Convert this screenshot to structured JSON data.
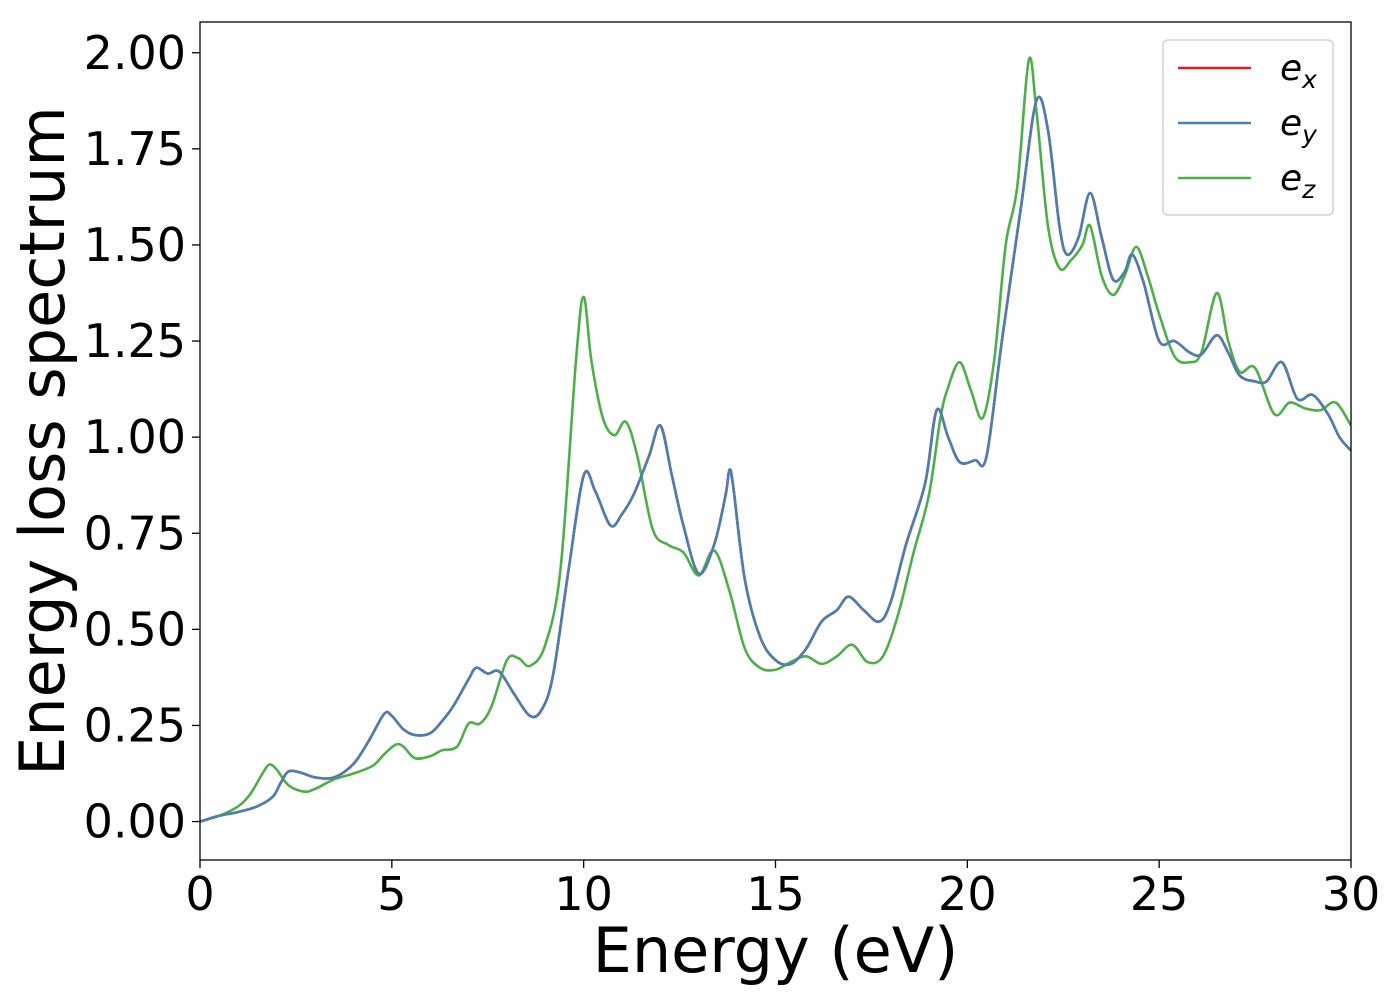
{
  "chart_data": {
    "type": "line",
    "title": "",
    "xlabel": "Energy (eV)",
    "ylabel": "Energy loss spectrum",
    "xlim": [
      0,
      30
    ],
    "ylim": [
      -0.1,
      2.08
    ],
    "x_ticks": [
      0,
      5,
      10,
      15,
      20,
      25,
      30
    ],
    "x_tick_labels": [
      "0",
      "5",
      "10",
      "15",
      "20",
      "25",
      "30"
    ],
    "y_ticks": [
      0,
      0.25,
      0.5,
      0.75,
      1.0,
      1.25,
      1.5,
      1.75,
      2.0
    ],
    "y_tick_labels": [
      "0.00",
      "0.25",
      "0.50",
      "0.75",
      "1.00",
      "1.25",
      "1.50",
      "1.75",
      "2.00"
    ],
    "grid": false,
    "legend_position": "top-right",
    "series": [
      {
        "name": "e",
        "subscript": "x",
        "color": "#e41a1c",
        "points": [
          [
            0,
            0.0
          ],
          [
            0.5,
            0.015
          ],
          [
            1.0,
            0.025
          ],
          [
            1.5,
            0.04
          ],
          [
            1.9,
            0.065
          ],
          [
            2.1,
            0.1
          ],
          [
            2.3,
            0.13
          ],
          [
            2.6,
            0.128
          ],
          [
            3.0,
            0.115
          ],
          [
            3.5,
            0.115
          ],
          [
            4.0,
            0.15
          ],
          [
            4.4,
            0.21
          ],
          [
            4.8,
            0.28
          ],
          [
            5.0,
            0.275
          ],
          [
            5.3,
            0.24
          ],
          [
            5.6,
            0.225
          ],
          [
            6.0,
            0.23
          ],
          [
            6.3,
            0.26
          ],
          [
            6.6,
            0.3
          ],
          [
            7.0,
            0.37
          ],
          [
            7.2,
            0.4
          ],
          [
            7.5,
            0.385
          ],
          [
            7.8,
            0.39
          ],
          [
            8.2,
            0.33
          ],
          [
            8.6,
            0.275
          ],
          [
            8.9,
            0.29
          ],
          [
            9.2,
            0.38
          ],
          [
            9.6,
            0.65
          ],
          [
            10.0,
            0.9
          ],
          [
            10.3,
            0.86
          ],
          [
            10.7,
            0.77
          ],
          [
            11.0,
            0.8
          ],
          [
            11.3,
            0.85
          ],
          [
            11.7,
            0.95
          ],
          [
            12.0,
            1.03
          ],
          [
            12.3,
            0.9
          ],
          [
            12.6,
            0.77
          ],
          [
            13.0,
            0.645
          ],
          [
            13.4,
            0.72
          ],
          [
            13.7,
            0.85
          ],
          [
            13.8,
            0.915
          ],
          [
            13.9,
            0.87
          ],
          [
            14.2,
            0.63
          ],
          [
            14.6,
            0.48
          ],
          [
            15.0,
            0.42
          ],
          [
            15.4,
            0.41
          ],
          [
            15.8,
            0.45
          ],
          [
            16.2,
            0.52
          ],
          [
            16.6,
            0.55
          ],
          [
            16.9,
            0.585
          ],
          [
            17.3,
            0.55
          ],
          [
            17.7,
            0.52
          ],
          [
            18.0,
            0.57
          ],
          [
            18.4,
            0.72
          ],
          [
            18.9,
            0.88
          ],
          [
            19.2,
            1.07
          ],
          [
            19.5,
            1.0
          ],
          [
            19.8,
            0.935
          ],
          [
            20.2,
            0.94
          ],
          [
            20.5,
            0.95
          ],
          [
            20.9,
            1.25
          ],
          [
            21.4,
            1.6
          ],
          [
            21.8,
            1.875
          ],
          [
            22.1,
            1.8
          ],
          [
            22.4,
            1.55
          ],
          [
            22.6,
            1.475
          ],
          [
            22.9,
            1.52
          ],
          [
            23.2,
            1.635
          ],
          [
            23.5,
            1.52
          ],
          [
            23.8,
            1.41
          ],
          [
            24.1,
            1.43
          ],
          [
            24.3,
            1.475
          ],
          [
            24.6,
            1.4
          ],
          [
            25.0,
            1.25
          ],
          [
            25.4,
            1.25
          ],
          [
            25.8,
            1.22
          ],
          [
            26.1,
            1.215
          ],
          [
            26.5,
            1.265
          ],
          [
            26.8,
            1.22
          ],
          [
            27.1,
            1.16
          ],
          [
            27.5,
            1.145
          ],
          [
            27.8,
            1.145
          ],
          [
            28.2,
            1.195
          ],
          [
            28.6,
            1.1
          ],
          [
            29.0,
            1.11
          ],
          [
            29.4,
            1.06
          ],
          [
            29.7,
            1.0
          ],
          [
            30.0,
            0.965
          ]
        ]
      },
      {
        "name": "e",
        "subscript": "y",
        "color": "#4a7fb0",
        "points": [
          [
            0,
            0.0
          ],
          [
            0.5,
            0.015
          ],
          [
            1.0,
            0.025
          ],
          [
            1.5,
            0.04
          ],
          [
            1.9,
            0.065
          ],
          [
            2.1,
            0.1
          ],
          [
            2.3,
            0.13
          ],
          [
            2.6,
            0.128
          ],
          [
            3.0,
            0.115
          ],
          [
            3.5,
            0.115
          ],
          [
            4.0,
            0.15
          ],
          [
            4.4,
            0.21
          ],
          [
            4.8,
            0.28
          ],
          [
            5.0,
            0.275
          ],
          [
            5.3,
            0.24
          ],
          [
            5.6,
            0.225
          ],
          [
            6.0,
            0.23
          ],
          [
            6.3,
            0.26
          ],
          [
            6.6,
            0.3
          ],
          [
            7.0,
            0.37
          ],
          [
            7.2,
            0.4
          ],
          [
            7.5,
            0.385
          ],
          [
            7.8,
            0.39
          ],
          [
            8.2,
            0.33
          ],
          [
            8.6,
            0.275
          ],
          [
            8.9,
            0.29
          ],
          [
            9.2,
            0.38
          ],
          [
            9.6,
            0.65
          ],
          [
            10.0,
            0.9
          ],
          [
            10.3,
            0.86
          ],
          [
            10.7,
            0.77
          ],
          [
            11.0,
            0.8
          ],
          [
            11.3,
            0.85
          ],
          [
            11.7,
            0.95
          ],
          [
            12.0,
            1.03
          ],
          [
            12.3,
            0.9
          ],
          [
            12.6,
            0.77
          ],
          [
            13.0,
            0.645
          ],
          [
            13.4,
            0.72
          ],
          [
            13.7,
            0.85
          ],
          [
            13.8,
            0.915
          ],
          [
            13.9,
            0.87
          ],
          [
            14.2,
            0.63
          ],
          [
            14.6,
            0.48
          ],
          [
            15.0,
            0.42
          ],
          [
            15.4,
            0.41
          ],
          [
            15.8,
            0.45
          ],
          [
            16.2,
            0.52
          ],
          [
            16.6,
            0.55
          ],
          [
            16.9,
            0.585
          ],
          [
            17.3,
            0.55
          ],
          [
            17.7,
            0.52
          ],
          [
            18.0,
            0.57
          ],
          [
            18.4,
            0.72
          ],
          [
            18.9,
            0.88
          ],
          [
            19.2,
            1.07
          ],
          [
            19.5,
            1.0
          ],
          [
            19.8,
            0.935
          ],
          [
            20.2,
            0.94
          ],
          [
            20.5,
            0.95
          ],
          [
            20.9,
            1.25
          ],
          [
            21.4,
            1.6
          ],
          [
            21.8,
            1.875
          ],
          [
            22.1,
            1.8
          ],
          [
            22.4,
            1.55
          ],
          [
            22.6,
            1.475
          ],
          [
            22.9,
            1.52
          ],
          [
            23.2,
            1.635
          ],
          [
            23.5,
            1.52
          ],
          [
            23.8,
            1.41
          ],
          [
            24.1,
            1.43
          ],
          [
            24.3,
            1.475
          ],
          [
            24.6,
            1.4
          ],
          [
            25.0,
            1.25
          ],
          [
            25.4,
            1.25
          ],
          [
            25.8,
            1.22
          ],
          [
            26.1,
            1.215
          ],
          [
            26.5,
            1.265
          ],
          [
            26.8,
            1.22
          ],
          [
            27.1,
            1.16
          ],
          [
            27.5,
            1.145
          ],
          [
            27.8,
            1.145
          ],
          [
            28.2,
            1.195
          ],
          [
            28.6,
            1.1
          ],
          [
            29.0,
            1.11
          ],
          [
            29.4,
            1.06
          ],
          [
            29.7,
            1.0
          ],
          [
            30.0,
            0.965
          ]
        ]
      },
      {
        "name": "e",
        "subscript": "z",
        "color": "#4daf4a",
        "points": [
          [
            0,
            0.0
          ],
          [
            0.5,
            0.015
          ],
          [
            1.0,
            0.04
          ],
          [
            1.3,
            0.07
          ],
          [
            1.6,
            0.12
          ],
          [
            1.8,
            0.148
          ],
          [
            2.0,
            0.135
          ],
          [
            2.3,
            0.095
          ],
          [
            2.7,
            0.078
          ],
          [
            3.0,
            0.085
          ],
          [
            3.5,
            0.11
          ],
          [
            4.0,
            0.125
          ],
          [
            4.5,
            0.145
          ],
          [
            4.8,
            0.175
          ],
          [
            5.1,
            0.2
          ],
          [
            5.3,
            0.195
          ],
          [
            5.6,
            0.165
          ],
          [
            6.0,
            0.17
          ],
          [
            6.3,
            0.185
          ],
          [
            6.7,
            0.195
          ],
          [
            7.0,
            0.255
          ],
          [
            7.3,
            0.255
          ],
          [
            7.6,
            0.3
          ],
          [
            8.0,
            0.42
          ],
          [
            8.3,
            0.425
          ],
          [
            8.6,
            0.405
          ],
          [
            9.0,
            0.46
          ],
          [
            9.4,
            0.66
          ],
          [
            9.8,
            1.2
          ],
          [
            10.0,
            1.365
          ],
          [
            10.2,
            1.2
          ],
          [
            10.5,
            1.05
          ],
          [
            10.8,
            1.005
          ],
          [
            11.1,
            1.04
          ],
          [
            11.4,
            0.95
          ],
          [
            11.8,
            0.76
          ],
          [
            12.2,
            0.72
          ],
          [
            12.6,
            0.7
          ],
          [
            13.0,
            0.64
          ],
          [
            13.4,
            0.705
          ],
          [
            13.8,
            0.6
          ],
          [
            14.2,
            0.45
          ],
          [
            14.6,
            0.4
          ],
          [
            15.0,
            0.395
          ],
          [
            15.4,
            0.415
          ],
          [
            15.8,
            0.43
          ],
          [
            16.2,
            0.41
          ],
          [
            16.6,
            0.43
          ],
          [
            17.0,
            0.46
          ],
          [
            17.4,
            0.415
          ],
          [
            17.8,
            0.43
          ],
          [
            18.2,
            0.54
          ],
          [
            18.6,
            0.7
          ],
          [
            19.0,
            0.85
          ],
          [
            19.3,
            1.05
          ],
          [
            19.5,
            1.13
          ],
          [
            19.8,
            1.195
          ],
          [
            20.1,
            1.12
          ],
          [
            20.4,
            1.05
          ],
          [
            20.7,
            1.2
          ],
          [
            21.0,
            1.5
          ],
          [
            21.3,
            1.65
          ],
          [
            21.6,
            1.98
          ],
          [
            21.8,
            1.85
          ],
          [
            22.1,
            1.55
          ],
          [
            22.4,
            1.44
          ],
          [
            22.7,
            1.46
          ],
          [
            23.0,
            1.5
          ],
          [
            23.2,
            1.55
          ],
          [
            23.5,
            1.42
          ],
          [
            23.8,
            1.37
          ],
          [
            24.1,
            1.42
          ],
          [
            24.4,
            1.495
          ],
          [
            24.7,
            1.42
          ],
          [
            25.0,
            1.32
          ],
          [
            25.4,
            1.21
          ],
          [
            25.8,
            1.195
          ],
          [
            26.1,
            1.22
          ],
          [
            26.5,
            1.375
          ],
          [
            26.8,
            1.25
          ],
          [
            27.1,
            1.17
          ],
          [
            27.5,
            1.18
          ],
          [
            28.0,
            1.06
          ],
          [
            28.4,
            1.09
          ],
          [
            28.8,
            1.075
          ],
          [
            29.2,
            1.07
          ],
          [
            29.6,
            1.09
          ],
          [
            30.0,
            1.03
          ]
        ]
      }
    ]
  }
}
